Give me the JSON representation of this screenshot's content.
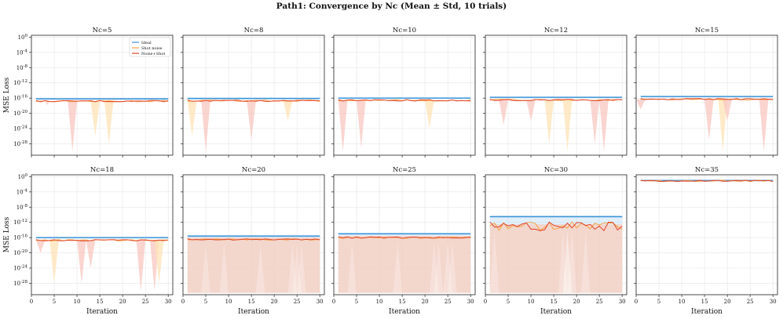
{
  "figure": {
    "title": "Path1: Convergence by Nc (Mean ± Std, 10 trials)"
  },
  "colors": {
    "ideal": "#3b93d6",
    "shot": "#f5a142",
    "noise_shot": "#e0452d",
    "ideal_fill": "#bcdcf5",
    "shot_fill": "#fde3b6",
    "noise_fill": "#f8c7c0"
  },
  "chart_data": [
    {
      "type": "line",
      "title": "Nc=5",
      "xlabel": "",
      "ylabel": "MSE Loss",
      "xlim": [
        0,
        31
      ],
      "ylim_log10": [
        -31,
        0.5
      ],
      "xticks": [],
      "yticks": [
        "10^0",
        "10^-4",
        "10^-8",
        "10^-12",
        "10^-16",
        "10^-20",
        "10^-24",
        "10^-28"
      ],
      "legend": {
        "position": "top-right",
        "entries": [
          "Ideal",
          "Shot noise",
          "Noise+Shot"
        ]
      },
      "series": [
        {
          "name": "Ideal",
          "mean_log10": -16.2
        },
        {
          "name": "Shot noise",
          "mean_log10": -16.8
        },
        {
          "name": "Noise+Shot",
          "mean_log10": -16.8
        }
      ],
      "band_dips": [
        {
          "series": "Noise+Shot",
          "x": [
            3,
            4
          ],
          "low_log10": -17.8
        },
        {
          "series": "Noise+Shot",
          "x": [
            8,
            10
          ],
          "low_log10": -30
        },
        {
          "series": "Noise+Shot",
          "x": [
            17,
            18
          ],
          "low_log10": -18
        },
        {
          "series": "Shot noise",
          "x": [
            13,
            15
          ],
          "low_log10": -26
        },
        {
          "series": "Shot noise",
          "x": [
            16,
            18
          ],
          "low_log10": -28
        }
      ]
    },
    {
      "type": "line",
      "title": "Nc=8",
      "xlabel": "",
      "ylabel": "",
      "xlim": [
        0,
        31
      ],
      "ylim_log10": [
        -31,
        0.5
      ],
      "xticks": [],
      "yticks": [],
      "series": [
        {
          "name": "Ideal",
          "mean_log10": -16.1
        },
        {
          "name": "Shot noise",
          "mean_log10": -16.7
        },
        {
          "name": "Noise+Shot",
          "mean_log10": -16.7
        }
      ],
      "band_dips": [
        {
          "series": "Shot noise",
          "x": [
            1,
            3
          ],
          "low_log10": -26
        },
        {
          "series": "Noise+Shot",
          "x": [
            4,
            6
          ],
          "low_log10": -30
        },
        {
          "series": "Noise+Shot",
          "x": [
            14,
            16
          ],
          "low_log10": -27
        },
        {
          "series": "Shot noise",
          "x": [
            22,
            24
          ],
          "low_log10": -22
        }
      ]
    },
    {
      "type": "line",
      "title": "Nc=10",
      "xlabel": "",
      "ylabel": "",
      "xlim": [
        0,
        31
      ],
      "ylim_log10": [
        -31,
        0.5
      ],
      "xticks": [],
      "yticks": [],
      "series": [
        {
          "name": "Ideal",
          "mean_log10": -16.0
        },
        {
          "name": "Shot noise",
          "mean_log10": -16.6
        },
        {
          "name": "Noise+Shot",
          "mean_log10": -16.6
        }
      ],
      "band_dips": [
        {
          "series": "Noise+Shot",
          "x": [
            1,
            3
          ],
          "low_log10": -30
        },
        {
          "series": "Noise+Shot",
          "x": [
            5,
            7
          ],
          "low_log10": -29
        },
        {
          "series": "Shot noise",
          "x": [
            20,
            22
          ],
          "low_log10": -24
        }
      ]
    },
    {
      "type": "line",
      "title": "Nc=12",
      "xlabel": "",
      "ylabel": "",
      "xlim": [
        0,
        31
      ],
      "ylim_log10": [
        -31,
        0.5
      ],
      "xticks": [],
      "yticks": [],
      "series": [
        {
          "name": "Ideal",
          "mean_log10": -15.8
        },
        {
          "name": "Shot noise",
          "mean_log10": -16.5
        },
        {
          "name": "Noise+Shot",
          "mean_log10": -16.5
        }
      ],
      "band_dips": [
        {
          "series": "Noise+Shot",
          "x": [
            3,
            5
          ],
          "low_log10": -23
        },
        {
          "series": "Noise+Shot",
          "x": [
            9,
            11
          ],
          "low_log10": -22
        },
        {
          "series": "Shot noise",
          "x": [
            13,
            15
          ],
          "low_log10": -28
        },
        {
          "series": "Shot noise",
          "x": [
            17,
            19
          ],
          "low_log10": -30
        },
        {
          "series": "Noise+Shot",
          "x": [
            23,
            25
          ],
          "low_log10": -28
        },
        {
          "series": "Noise+Shot",
          "x": [
            25,
            27
          ],
          "low_log10": -30
        }
      ]
    },
    {
      "type": "line",
      "title": "Nc=15",
      "xlabel": "",
      "ylabel": "",
      "xlim": [
        0,
        31
      ],
      "ylim_log10": [
        -31,
        0.5
      ],
      "xticks": [],
      "yticks": [],
      "series": [
        {
          "name": "Ideal",
          "mean_log10": -15.6
        },
        {
          "name": "Shot noise",
          "mean_log10": -16.3
        },
        {
          "name": "Noise+Shot",
          "mean_log10": -16.3
        }
      ],
      "band_dips": [
        {
          "series": "Noise+Shot",
          "x": [
            0,
            2
          ],
          "low_log10": -19
        },
        {
          "series": "Noise+Shot",
          "x": [
            15,
            17
          ],
          "low_log10": -27
        },
        {
          "series": "Shot noise",
          "x": [
            18,
            20
          ],
          "low_log10": -30
        },
        {
          "series": "Noise+Shot",
          "x": [
            19,
            21
          ],
          "low_log10": -22
        },
        {
          "series": "Noise+Shot",
          "x": [
            27,
            29
          ],
          "low_log10": -30
        }
      ]
    },
    {
      "type": "line",
      "title": "Nc=18",
      "xlabel": "Iteration",
      "ylabel": "MSE Loss",
      "xlim": [
        0,
        31
      ],
      "ylim_log10": [
        -31,
        0.5
      ],
      "xticks": [
        "0",
        "5",
        "10",
        "15",
        "20",
        "25",
        "30"
      ],
      "yticks": [
        "10^0",
        "10^-4",
        "10^-8",
        "10^-12",
        "10^-16",
        "10^-20",
        "10^-24",
        "10^-28"
      ],
      "series": [
        {
          "name": "Ideal",
          "mean_log10": -16.0
        },
        {
          "name": "Shot noise",
          "mean_log10": -16.7
        },
        {
          "name": "Noise+Shot",
          "mean_log10": -16.7
        }
      ],
      "band_dips": [
        {
          "series": "Noise+Shot",
          "x": [
            1,
            3
          ],
          "low_log10": -20
        },
        {
          "series": "Shot noise",
          "x": [
            4,
            6
          ],
          "low_log10": -28
        },
        {
          "series": "Noise+Shot",
          "x": [
            10,
            12
          ],
          "low_log10": -28
        },
        {
          "series": "Noise+Shot",
          "x": [
            12,
            14
          ],
          "low_log10": -24
        },
        {
          "series": "Noise+Shot",
          "x": [
            23,
            25
          ],
          "low_log10": -30
        },
        {
          "series": "Noise+Shot",
          "x": [
            26,
            28
          ],
          "low_log10": -30
        },
        {
          "series": "Shot noise",
          "x": [
            27,
            29
          ],
          "low_log10": -28
        }
      ]
    },
    {
      "type": "line",
      "title": "Nc=20",
      "xlabel": "Iteration",
      "ylabel": "",
      "xlim": [
        0,
        31
      ],
      "ylim_log10": [
        -31,
        0.5
      ],
      "xticks": [
        "0",
        "5",
        "10",
        "15",
        "20",
        "25",
        "30"
      ],
      "yticks": [],
      "series": [
        {
          "name": "Ideal",
          "mean_log10": -15.6
        },
        {
          "name": "Shot noise",
          "mean_log10": -16.5
        },
        {
          "name": "Noise+Shot",
          "mean_log10": -16.5
        }
      ],
      "dense_band": {
        "low_log10": -30.5
      }
    },
    {
      "type": "line",
      "title": "Nc=25",
      "xlabel": "Iteration",
      "ylabel": "",
      "xlim": [
        0,
        31
      ],
      "ylim_log10": [
        -31,
        0.5
      ],
      "xticks": [
        "0",
        "5",
        "10",
        "15",
        "20",
        "25",
        "30"
      ],
      "yticks": [],
      "series": [
        {
          "name": "Ideal",
          "mean_log10": -15.0
        },
        {
          "name": "Shot noise",
          "mean_log10": -16.0
        },
        {
          "name": "Noise+Shot",
          "mean_log10": -16.0
        }
      ],
      "dense_band": {
        "low_log10": -30.5
      }
    },
    {
      "type": "line",
      "title": "Nc=30",
      "xlabel": "Iteration",
      "ylabel": "",
      "xlim": [
        0,
        31
      ],
      "ylim_log10": [
        -31,
        0.5
      ],
      "xticks": [
        "0",
        "5",
        "10",
        "15",
        "20",
        "25",
        "30"
      ],
      "yticks": [],
      "series": [
        {
          "name": "Ideal",
          "mean_log10": -10.5
        },
        {
          "name": "Shot noise",
          "mean_log10": -13.0
        },
        {
          "name": "Noise+Shot",
          "mean_log10": -13.0
        }
      ],
      "dense_band": {
        "low_log10": -30.5
      }
    },
    {
      "type": "line",
      "title": "Nc=35",
      "xlabel": "Iteration",
      "ylabel": "",
      "xlim": [
        0,
        31
      ],
      "ylim_log10": [
        -31,
        0.5
      ],
      "xticks": [
        "0",
        "5",
        "10",
        "15",
        "20",
        "25",
        "30"
      ],
      "yticks": [],
      "series": [
        {
          "name": "Ideal",
          "mean_log10": -1.0
        },
        {
          "name": "Shot noise",
          "mean_log10": -1.1
        },
        {
          "name": "Noise+Shot",
          "mean_log10": -1.1
        }
      ]
    }
  ]
}
